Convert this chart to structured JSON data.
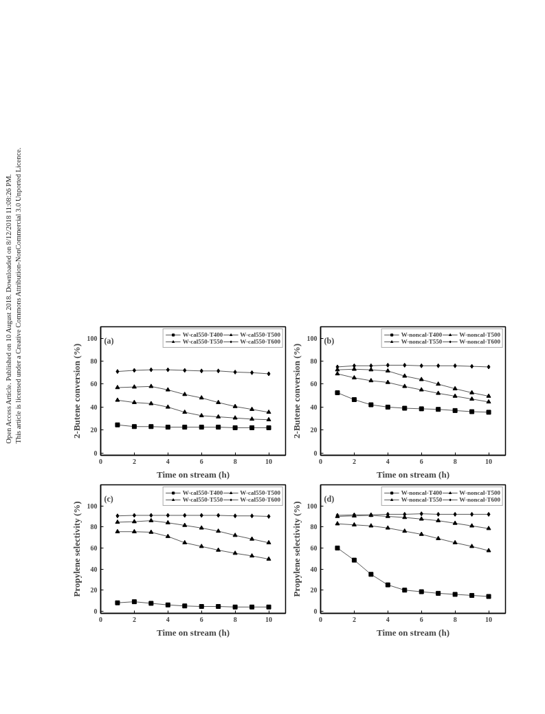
{
  "chart_data": [
    {
      "type": "other",
      "annotations": [
        "Open Access Article. Published on 10 August 2018. Downloaded on 8/12/2018 11:08:26 PM.",
        "This article is licensed under a Creative Commons Attribution-NonCommercial 3.0 Unported Licence."
      ]
    },
    {
      "type": "line",
      "xlabel": "Time on stream (h)",
      "ylabel": "2-Butene conversion (%)",
      "annotations": [
        "(a)"
      ],
      "x": [
        1,
        2,
        3,
        4,
        5,
        6,
        7,
        8,
        9,
        10
      ],
      "xlim": [
        0,
        11
      ],
      "xticks": [
        0,
        2,
        4,
        6,
        8,
        10
      ],
      "ylim": [
        -2,
        110
      ],
      "yticks": [
        0,
        20,
        40,
        60,
        80,
        100
      ],
      "grid": false,
      "legend": "top right",
      "series": [
        {
          "name": "W-cal550-T400",
          "color": "#000000",
          "marker": "square",
          "values": [
            24.5,
            23,
            23,
            22.5,
            22.5,
            22.5,
            22.5,
            22,
            22,
            22
          ]
        },
        {
          "name": "W-cal550-T500",
          "color": "#000000",
          "marker": "triangle",
          "values": [
            46,
            44,
            43,
            40,
            35.5,
            32.5,
            31.5,
            30.5,
            29.5,
            29
          ]
        },
        {
          "name": "W-cal550-T550",
          "color": "#000000",
          "marker": "triangle",
          "values": [
            57,
            57.5,
            58,
            55,
            51,
            48,
            44,
            40.5,
            38,
            35.5
          ]
        },
        {
          "name": "W-cal550-T600",
          "color": "#000000",
          "marker": "diamond",
          "values": [
            71,
            72,
            72.5,
            72.5,
            72,
            71.5,
            71.5,
            70.5,
            70,
            69
          ]
        }
      ]
    },
    {
      "type": "line",
      "xlabel": "Time on stream (h)",
      "ylabel": "2-Butene conversion (%)",
      "annotations": [
        "(b)"
      ],
      "x": [
        1,
        2,
        3,
        4,
        5,
        6,
        7,
        8,
        9,
        10
      ],
      "xlim": [
        0,
        11
      ],
      "xticks": [
        0,
        2,
        4,
        6,
        8,
        10
      ],
      "ylim": [
        -2,
        110
      ],
      "yticks": [
        0,
        20,
        40,
        60,
        80,
        100
      ],
      "grid": false,
      "legend": "top right",
      "series": [
        {
          "name": "W-noncal-T400",
          "color": "#000000",
          "marker": "square",
          "values": [
            52.5,
            46.5,
            42,
            40,
            39,
            38.5,
            38,
            37,
            36,
            35.5
          ]
        },
        {
          "name": "W-noncal-T500",
          "color": "#000000",
          "marker": "triangle",
          "values": [
            69,
            65.5,
            63,
            61.5,
            58,
            55,
            52,
            49.5,
            47,
            44.5
          ]
        },
        {
          "name": "W-noncal-T550",
          "color": "#000000",
          "marker": "triangle",
          "values": [
            72.5,
            73,
            72.5,
            71.5,
            67,
            64,
            60,
            56,
            52.5,
            49.5
          ]
        },
        {
          "name": "W-noncal-T600",
          "color": "#000000",
          "marker": "diamond",
          "values": [
            75,
            76,
            76,
            76.5,
            76.5,
            76,
            76,
            76,
            75.5,
            75
          ]
        }
      ]
    },
    {
      "type": "line",
      "xlabel": "Time on stream (h)",
      "ylabel": "Propylene selectivity (%)",
      "annotations": [
        "(c)"
      ],
      "x": [
        1,
        2,
        3,
        4,
        5,
        6,
        7,
        8,
        9,
        10
      ],
      "xlim": [
        0,
        11
      ],
      "xticks": [
        0,
        2,
        4,
        6,
        8,
        10
      ],
      "ylim": [
        -2,
        120
      ],
      "yticks": [
        0,
        20,
        40,
        60,
        80,
        100
      ],
      "grid": false,
      "legend": "top right",
      "series": [
        {
          "name": "W-cal550-T400",
          "color": "#000000",
          "marker": "square",
          "values": [
            8,
            9,
            7.5,
            6,
            5,
            4.5,
            4.5,
            4,
            4,
            4
          ]
        },
        {
          "name": "W-cal550-T500",
          "color": "#000000",
          "marker": "triangle",
          "values": [
            75.5,
            75.5,
            75,
            71,
            65,
            61.5,
            58,
            55,
            52.5,
            49.5
          ]
        },
        {
          "name": "W-cal550-T550",
          "color": "#000000",
          "marker": "triangle",
          "values": [
            84.5,
            85,
            86,
            84,
            81.5,
            79,
            76,
            72,
            68.5,
            65
          ]
        },
        {
          "name": "W-cal550-T600",
          "color": "#000000",
          "marker": "diamond",
          "values": [
            90.5,
            91,
            91,
            91,
            91,
            91,
            91,
            90.5,
            90.5,
            90
          ]
        }
      ]
    },
    {
      "type": "line",
      "xlabel": "Time on stream (h)",
      "ylabel": "Propylene selectivity (%)",
      "annotations": [
        "(d)"
      ],
      "x": [
        1,
        2,
        3,
        4,
        5,
        6,
        7,
        8,
        9,
        10
      ],
      "xlim": [
        0,
        11
      ],
      "xticks": [
        0,
        2,
        4,
        6,
        8,
        10
      ],
      "ylim": [
        -2,
        120
      ],
      "yticks": [
        0,
        20,
        40,
        60,
        80,
        100
      ],
      "grid": false,
      "legend": "top right",
      "series": [
        {
          "name": "W-noncal-T400",
          "color": "#000000",
          "marker": "square",
          "values": [
            60,
            48.5,
            35,
            25,
            20,
            18.5,
            17,
            16,
            15,
            14
          ]
        },
        {
          "name": "W-noncal-T500",
          "color": "#000000",
          "marker": "triangle",
          "values": [
            83,
            82,
            81,
            79,
            76,
            73,
            69,
            65,
            61.5,
            57.5
          ]
        },
        {
          "name": "W-noncal-T550",
          "color": "#000000",
          "marker": "triangle",
          "values": [
            90,
            90.5,
            91,
            90,
            89,
            87.5,
            86,
            83.5,
            81,
            78.5
          ]
        },
        {
          "name": "W-noncal-T600",
          "color": "#000000",
          "marker": "diamond",
          "values": [
            91,
            91.5,
            91.5,
            92,
            92,
            92.5,
            92,
            92,
            92,
            92
          ]
        }
      ]
    }
  ]
}
